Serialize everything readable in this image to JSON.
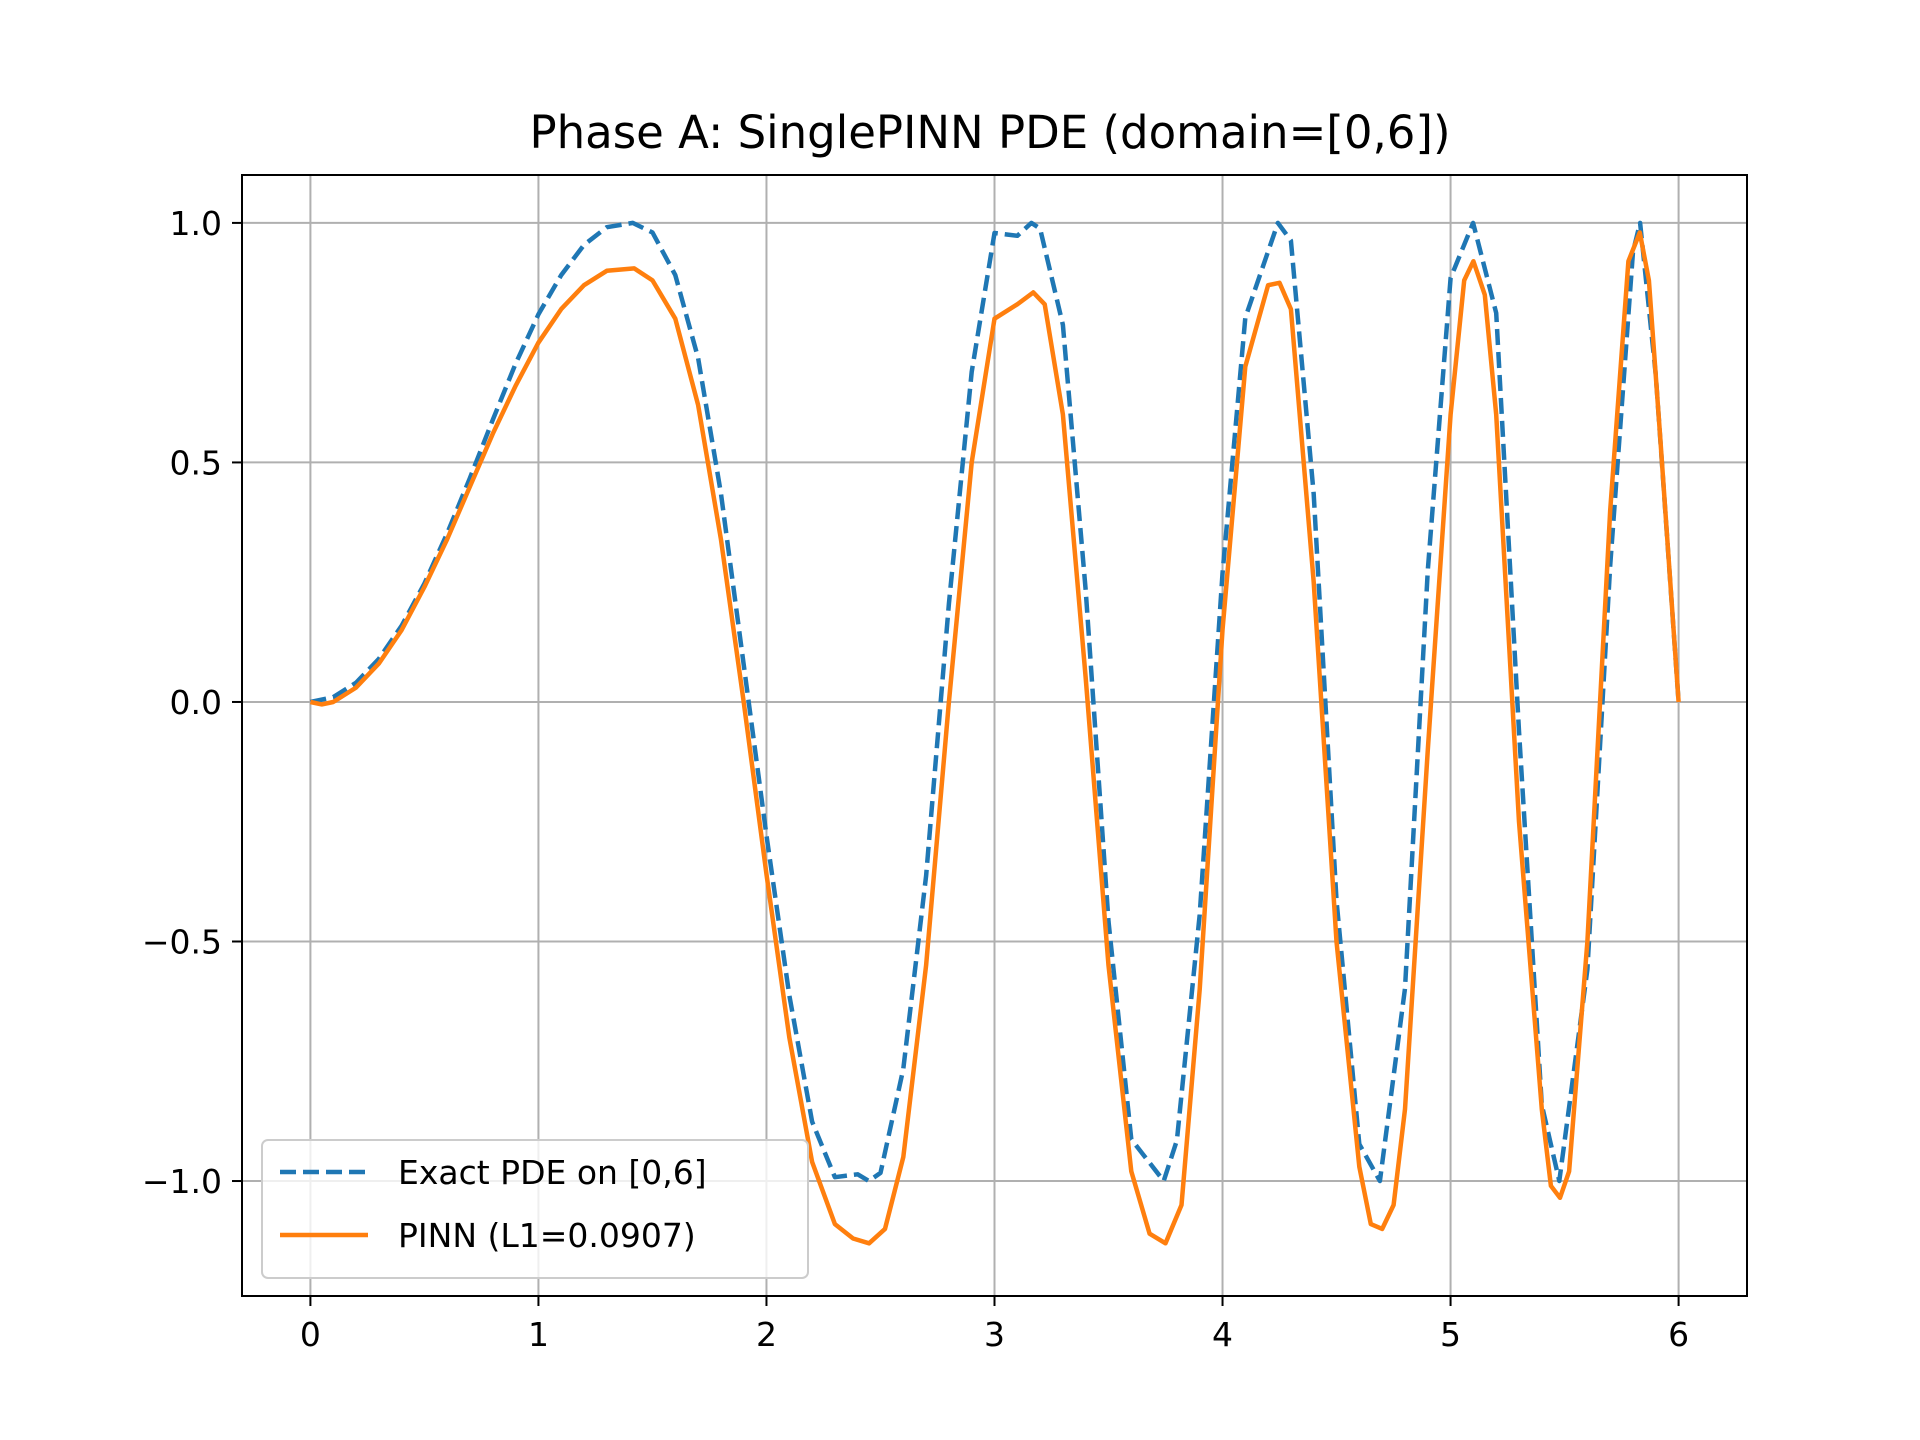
{
  "chart_data": {
    "type": "line",
    "title": "Phase A: SinglePINN PDE (domain=[0,6])",
    "xlabel": "",
    "ylabel": "",
    "xlim": [
      -0.3,
      6.3
    ],
    "ylim": [
      -1.24,
      1.1
    ],
    "grid": true,
    "legend_position": "lower-left",
    "xticks": [
      0,
      1,
      2,
      3,
      4,
      5,
      6
    ],
    "xtick_labels": [
      "0",
      "1",
      "2",
      "3",
      "4",
      "5",
      "6"
    ],
    "yticks": [
      1.0,
      0.5,
      0.0,
      -0.5,
      -1.0
    ],
    "ytick_labels": [
      "1.0",
      "0.5",
      "0.0",
      "−0.5",
      "−1.0"
    ],
    "series": [
      {
        "name": "Exact PDE on [0,6]",
        "color": "#1f77b4",
        "style": "dashed",
        "x": [
          0.0,
          0.1,
          0.2,
          0.3,
          0.4,
          0.5,
          0.6,
          0.7,
          0.8,
          0.9,
          1.0,
          1.1,
          1.2,
          1.3,
          1.414,
          1.5,
          1.6,
          1.7,
          1.8,
          1.9,
          2.0,
          2.1,
          2.2,
          2.3,
          2.4,
          2.449,
          2.5,
          2.6,
          2.7,
          2.8,
          2.9,
          3.0,
          3.1,
          3.162,
          3.2,
          3.3,
          3.4,
          3.5,
          3.6,
          3.742,
          3.8,
          3.9,
          4.0,
          4.1,
          4.243,
          4.3,
          4.4,
          4.5,
          4.6,
          4.69,
          4.8,
          4.9,
          5.0,
          5.099,
          5.2,
          5.3,
          5.4,
          5.477,
          5.6,
          5.7,
          5.8,
          5.831,
          5.9,
          6.0
        ],
        "y": [
          0.0,
          0.01,
          0.04,
          0.09,
          0.159,
          0.247,
          0.352,
          0.468,
          0.589,
          0.706,
          0.809,
          0.891,
          0.954,
          0.991,
          1.0,
          0.98,
          0.891,
          0.718,
          0.436,
          0.078,
          -0.279,
          -0.612,
          -0.876,
          -0.992,
          -0.986,
          -1.0,
          -0.983,
          -0.766,
          -0.363,
          0.205,
          0.689,
          0.979,
          0.973,
          1.0,
          0.988,
          0.787,
          0.233,
          -0.458,
          -0.913,
          -1.0,
          -0.915,
          -0.444,
          0.268,
          0.802,
          1.0,
          0.963,
          0.434,
          -0.414,
          -0.923,
          -1.0,
          -0.598,
          0.275,
          0.885,
          1.0,
          0.812,
          -0.061,
          -0.841,
          -1.0,
          -0.558,
          0.285,
          0.94,
          1.0,
          0.682,
          -0.0
        ]
      },
      {
        "name": "PINN (L1=0.0907)",
        "color": "#ff7f0e",
        "style": "solid",
        "x": [
          0.0,
          0.05,
          0.1,
          0.2,
          0.3,
          0.4,
          0.5,
          0.6,
          0.7,
          0.8,
          0.9,
          1.0,
          1.1,
          1.2,
          1.3,
          1.42,
          1.5,
          1.6,
          1.7,
          1.8,
          1.9,
          2.0,
          2.1,
          2.2,
          2.3,
          2.38,
          2.45,
          2.52,
          2.6,
          2.7,
          2.8,
          2.9,
          3.0,
          3.1,
          3.17,
          3.22,
          3.3,
          3.4,
          3.5,
          3.6,
          3.68,
          3.75,
          3.82,
          3.9,
          4.0,
          4.1,
          4.2,
          4.25,
          4.3,
          4.4,
          4.5,
          4.6,
          4.65,
          4.7,
          4.75,
          4.8,
          4.9,
          5.0,
          5.06,
          5.1,
          5.15,
          5.2,
          5.3,
          5.4,
          5.44,
          5.48,
          5.52,
          5.6,
          5.7,
          5.78,
          5.83,
          5.87,
          5.92,
          6.0
        ],
        "y": [
          0.0,
          -0.005,
          0.0,
          0.03,
          0.08,
          0.15,
          0.24,
          0.34,
          0.45,
          0.56,
          0.66,
          0.75,
          0.82,
          0.87,
          0.9,
          0.905,
          0.88,
          0.8,
          0.62,
          0.34,
          0.0,
          -0.36,
          -0.7,
          -0.96,
          -1.09,
          -1.12,
          -1.13,
          -1.1,
          -0.95,
          -0.55,
          0.0,
          0.5,
          0.8,
          0.83,
          0.855,
          0.83,
          0.6,
          0.05,
          -0.55,
          -0.98,
          -1.11,
          -1.13,
          -1.05,
          -0.6,
          0.15,
          0.7,
          0.87,
          0.875,
          0.82,
          0.25,
          -0.5,
          -0.97,
          -1.09,
          -1.1,
          -1.05,
          -0.85,
          -0.1,
          0.6,
          0.88,
          0.92,
          0.85,
          0.6,
          -0.25,
          -0.85,
          -1.01,
          -1.035,
          -0.98,
          -0.5,
          0.4,
          0.92,
          0.98,
          0.88,
          0.55,
          0.0
        ]
      }
    ]
  }
}
